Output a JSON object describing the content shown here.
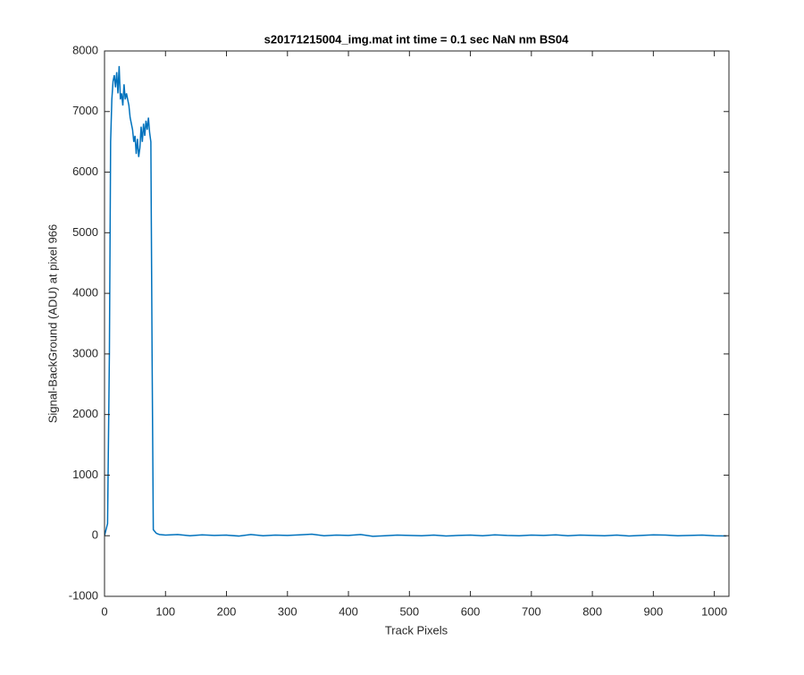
{
  "chart_data": {
    "type": "line",
    "title": "s20171215004_img.mat int time = 0.1 sec  NaN nm BS04",
    "x_label": "Track Pixels",
    "y_label": "Signal-BackGround (ADU) at pixel 966",
    "x": [
      0,
      5,
      8,
      10,
      12,
      14,
      16,
      18,
      20,
      22,
      24,
      26,
      28,
      30,
      32,
      34,
      36,
      38,
      40,
      42,
      44,
      46,
      48,
      50,
      52,
      54,
      56,
      58,
      60,
      62,
      64,
      66,
      68,
      70,
      72,
      74,
      76,
      78,
      80,
      85,
      90,
      100,
      120,
      140,
      160,
      180,
      200,
      220,
      240,
      260,
      280,
      300,
      320,
      340,
      360,
      380,
      400,
      420,
      440,
      460,
      480,
      500,
      520,
      540,
      560,
      580,
      600,
      620,
      640,
      660,
      680,
      700,
      720,
      740,
      760,
      780,
      800,
      820,
      840,
      860,
      880,
      900,
      920,
      940,
      960,
      980,
      1000,
      1020
    ],
    "values": [
      0,
      200,
      3000,
      6500,
      7200,
      7500,
      7600,
      7400,
      7650,
      7300,
      7750,
      7200,
      7300,
      7100,
      7450,
      7200,
      7300,
      7200,
      7100,
      6900,
      6800,
      6700,
      6500,
      6600,
      6300,
      6550,
      6250,
      6400,
      6750,
      6500,
      6800,
      6600,
      6850,
      6700,
      6900,
      6650,
      6500,
      3000,
      100,
      40,
      20,
      10,
      20,
      0,
      15,
      5,
      10,
      -5,
      20,
      0,
      10,
      5,
      15,
      25,
      0,
      10,
      5,
      20,
      -10,
      0,
      10,
      5,
      0,
      10,
      -5,
      5,
      10,
      0,
      15,
      5,
      0,
      10,
      5,
      15,
      0,
      10,
      5,
      0,
      10,
      -5,
      5,
      15,
      10,
      0,
      5,
      10,
      0,
      -5
    ],
    "color": "#0072bd",
    "xlim": [
      0,
      1024
    ],
    "xticks": [
      0,
      100,
      200,
      300,
      400,
      500,
      600,
      700,
      800,
      900,
      1000
    ],
    "ylim": [
      -1000,
      8000
    ],
    "yticks": [
      -1000,
      0,
      1000,
      2000,
      3000,
      4000,
      5000,
      6000,
      7000,
      8000
    ],
    "grid": false
  }
}
